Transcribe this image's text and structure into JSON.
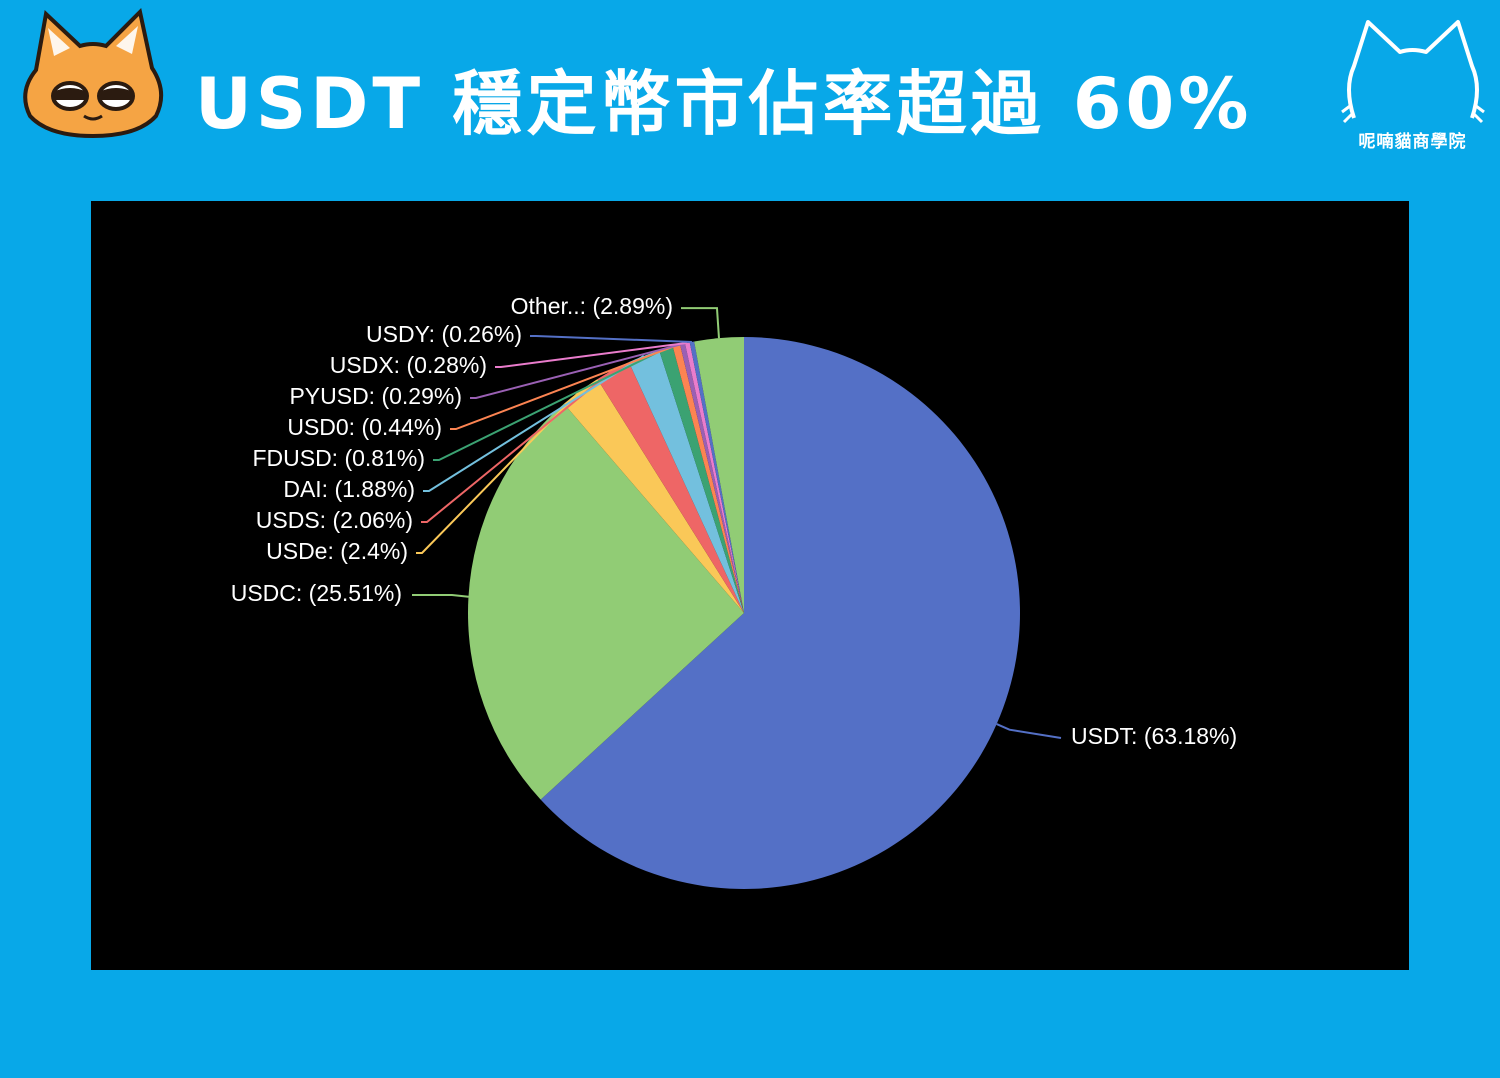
{
  "header": {
    "title": "USDT 穩定幣市佔率超過 60%",
    "brand_name": "呢喃貓商學院"
  },
  "colors": {
    "background": "#08a8e8",
    "panel": "#000000",
    "mascot": "#f5a444"
  },
  "icons": {
    "mascot": "orange-cat-face-icon",
    "brand": "cat-outline-logo-icon"
  },
  "chart_data": {
    "type": "pie",
    "title": "",
    "slices": [
      {
        "label": "USDT: (63.18%)",
        "name": "USDT",
        "value": 63.18,
        "color": "#5470c6"
      },
      {
        "label": "USDC: (25.51%)",
        "name": "USDC",
        "value": 25.51,
        "color": "#91cc75"
      },
      {
        "label": "USDe: (2.4%)",
        "name": "USDe",
        "value": 2.4,
        "color": "#fac858"
      },
      {
        "label": "USDS: (2.06%)",
        "name": "USDS",
        "value": 2.06,
        "color": "#ee6666"
      },
      {
        "label": "DAI: (1.88%)",
        "name": "DAI",
        "value": 1.88,
        "color": "#73c0de"
      },
      {
        "label": "FDUSD: (0.81%)",
        "name": "FDUSD",
        "value": 0.81,
        "color": "#3ba272"
      },
      {
        "label": "USD0: (0.44%)",
        "name": "USD0",
        "value": 0.44,
        "color": "#fc8452"
      },
      {
        "label": "PYUSD: (0.29%)",
        "name": "PYUSD",
        "value": 0.29,
        "color": "#9a60b4"
      },
      {
        "label": "USDX: (0.28%)",
        "name": "USDX",
        "value": 0.28,
        "color": "#ea7ccc"
      },
      {
        "label": "USDY: (0.26%)",
        "name": "USDY",
        "value": 0.26,
        "color": "#5470c6"
      },
      {
        "label": "Other..: (2.89%)",
        "name": "Other..",
        "value": 2.89,
        "color": "#91cc75"
      }
    ]
  }
}
